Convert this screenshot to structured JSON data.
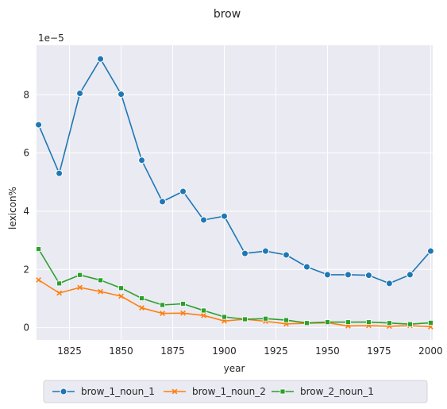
{
  "chart_data": {
    "type": "line",
    "title": "brow",
    "xlabel": "year",
    "ylabel": "lexicon%",
    "y_multiplier_label": "1e−5",
    "xlim": [
      1809,
      2001
    ],
    "ylim": [
      -0.42,
      9.7
    ],
    "x_ticks": [
      1825,
      1850,
      1875,
      1900,
      1925,
      1950,
      1975,
      2000
    ],
    "y_ticks": [
      0,
      2,
      4,
      6,
      8
    ],
    "x": [
      1810,
      1820,
      1830,
      1840,
      1850,
      1860,
      1870,
      1880,
      1890,
      1900,
      1910,
      1920,
      1930,
      1940,
      1950,
      1960,
      1970,
      1980,
      1990,
      2000
    ],
    "series": [
      {
        "name": "brow_1_noun_1",
        "color": "#1f77b4",
        "marker": "circle",
        "values": [
          6.97,
          5.3,
          8.05,
          9.23,
          8.02,
          5.75,
          4.33,
          4.68,
          3.7,
          3.83,
          2.55,
          2.63,
          2.5,
          2.09,
          1.82,
          1.82,
          1.8,
          1.52,
          1.82,
          2.63
        ]
      },
      {
        "name": "brow_1_noun_2",
        "color": "#ff7f0e",
        "marker": "x",
        "values": [
          1.64,
          1.19,
          1.38,
          1.24,
          1.08,
          0.68,
          0.49,
          0.5,
          0.42,
          0.23,
          0.29,
          0.22,
          0.13,
          0.15,
          0.17,
          0.06,
          0.07,
          0.05,
          0.07,
          0.03
        ]
      },
      {
        "name": "brow_2_noun_1",
        "color": "#2ca02c",
        "marker": "square",
        "values": [
          2.7,
          1.52,
          1.81,
          1.63,
          1.36,
          1.01,
          0.78,
          0.82,
          0.59,
          0.37,
          0.29,
          0.31,
          0.26,
          0.16,
          0.19,
          0.19,
          0.19,
          0.16,
          0.12,
          0.17
        ]
      }
    ],
    "legend_position": "bottom-center",
    "grid": true
  }
}
